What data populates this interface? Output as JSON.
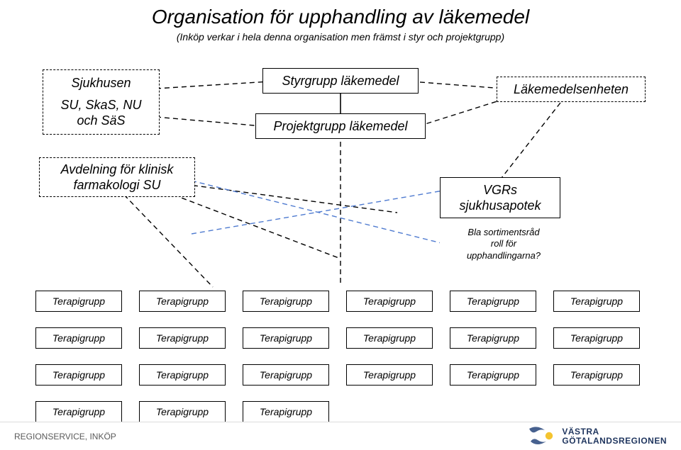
{
  "title": "Organisation för upphandling av läkemedel",
  "subtitle": "(Inköp verkar i hela denna organisation men främst i styr och projektgrupp)",
  "boxes": {
    "sjukhusen": {
      "label": "Sjukhusen",
      "sub": "SU, SkaS, NU\noch SäS"
    },
    "styrgrupp": "Styrgrupp läkemedel",
    "projektgrupp": "Projektgrupp läkemedel",
    "lakemedelsenheten": "Läkemedelsenheten",
    "avdelning": "Avdelning för klinisk\nfarmakologi SU",
    "vgrs": "VGRs\nsjukhusapotek",
    "note": "Bla sortimentsråd\nroll för\nupphandlingarna?"
  },
  "terapigrupp_label": "Terapigrupp",
  "terapigrupp_rows": [
    6,
    6,
    6,
    3
  ],
  "footer_left": "REGIONSERVICE, INKÖP",
  "footer_right_l1": "VÄSTRA",
  "footer_right_l2": "GÖTALANDSREGIONEN",
  "colors": {
    "line": "#000000",
    "dashed_blue": "#4f7bd0",
    "logo_blue": "#47618f",
    "logo_yellow": "#f4c430",
    "text_navy": "#1f355e"
  },
  "font": {
    "title_pt": 28,
    "subtitle_pt": 14,
    "box_pt": 18,
    "small_pt": 13,
    "tg_pt": 14
  }
}
